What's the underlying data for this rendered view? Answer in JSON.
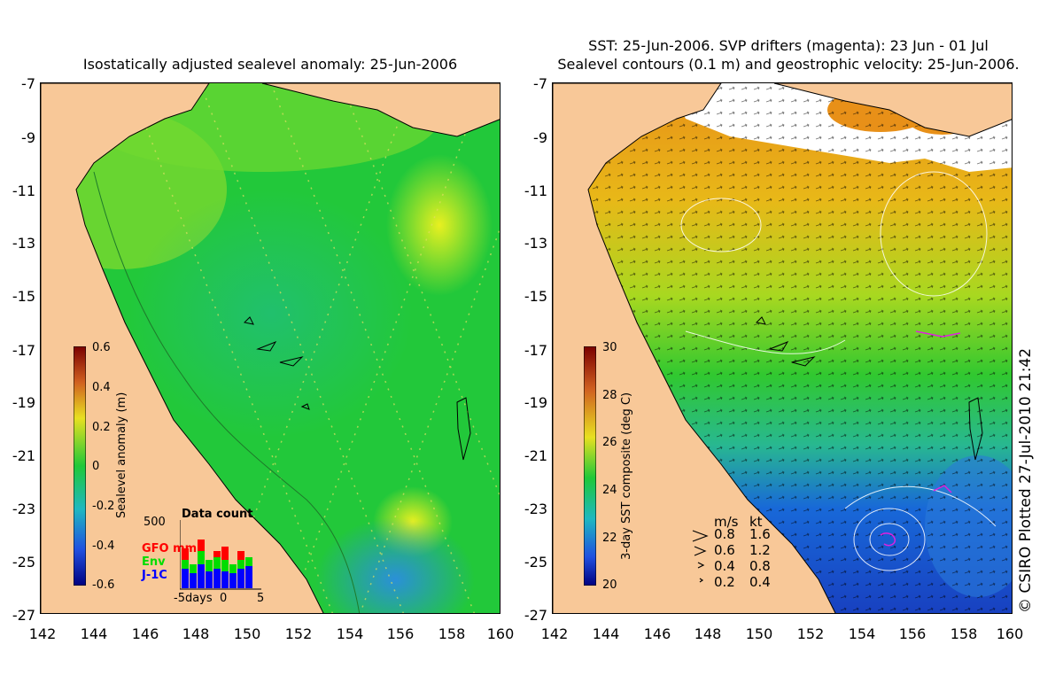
{
  "left": {
    "title": "Isostatically adjusted sealevel anomaly: 25-Jun-2006",
    "yticks": [
      "-7",
      "-9",
      "-11",
      "-13",
      "-15",
      "-17",
      "-19",
      "-21",
      "-23",
      "-25",
      "-27"
    ],
    "xticks": [
      "142",
      "144",
      "146",
      "148",
      "150",
      "152",
      "154",
      "156",
      "158",
      "160"
    ],
    "colorbar": {
      "label": "Sealevel anomaly (m)",
      "ticks": [
        "0.6",
        "0.4",
        "0.2",
        "0",
        "-0.2",
        "-0.4",
        "-0.6"
      ],
      "range": [
        -0.6,
        0.6
      ]
    },
    "inset": {
      "title": "Data count",
      "ymax": "500",
      "legend": [
        {
          "label": "GFO mm",
          "color": "#ff0000"
        },
        {
          "label": "Env",
          "color": "#00dd00"
        },
        {
          "label": "J-1C",
          "color": "#0000ff"
        }
      ],
      "xlabel_left": "-5days",
      "xlabel_mid": "0",
      "xlabel_right": "5"
    }
  },
  "right": {
    "title_line1": "SST: 25-Jun-2006. SVP drifters (magenta): 23 Jun - 01 Jul",
    "title_line2": "Sealevel contours (0.1 m) and geostrophic velocity: 25-Jun-2006.",
    "yticks": [
      "-7",
      "-9",
      "-11",
      "-13",
      "-15",
      "-17",
      "-19",
      "-21",
      "-23",
      "-25",
      "-27"
    ],
    "xticks": [
      "142",
      "144",
      "146",
      "148",
      "150",
      "152",
      "154",
      "156",
      "158",
      "160"
    ],
    "colorbar": {
      "label": "3-day SST composite (deg C)",
      "ticks": [
        "30",
        "28",
        "26",
        "24",
        "22",
        "20"
      ],
      "range": [
        20,
        30
      ]
    },
    "velocity_legend": {
      "header_ms": "m/s",
      "header_kt": "kt",
      "rows": [
        {
          "ms": "0.8",
          "kt": "1.6"
        },
        {
          "ms": "0.6",
          "kt": "1.2"
        },
        {
          "ms": "0.4",
          "kt": "0.8"
        },
        {
          "ms": "0.2",
          "kt": "0.4"
        }
      ]
    }
  },
  "copyright": "© CSIRO Plotted 27-Jul-2010 21:42",
  "colors": {
    "land": "#f8c898",
    "sla_mid": "#22c83a",
    "sla_high": "#e8f020",
    "sla_low": "#2a90d8",
    "sst_warm": "#e89018",
    "sst_mid": "#30c830",
    "sst_cool": "#1868d8",
    "cloud": "#ffffff"
  }
}
